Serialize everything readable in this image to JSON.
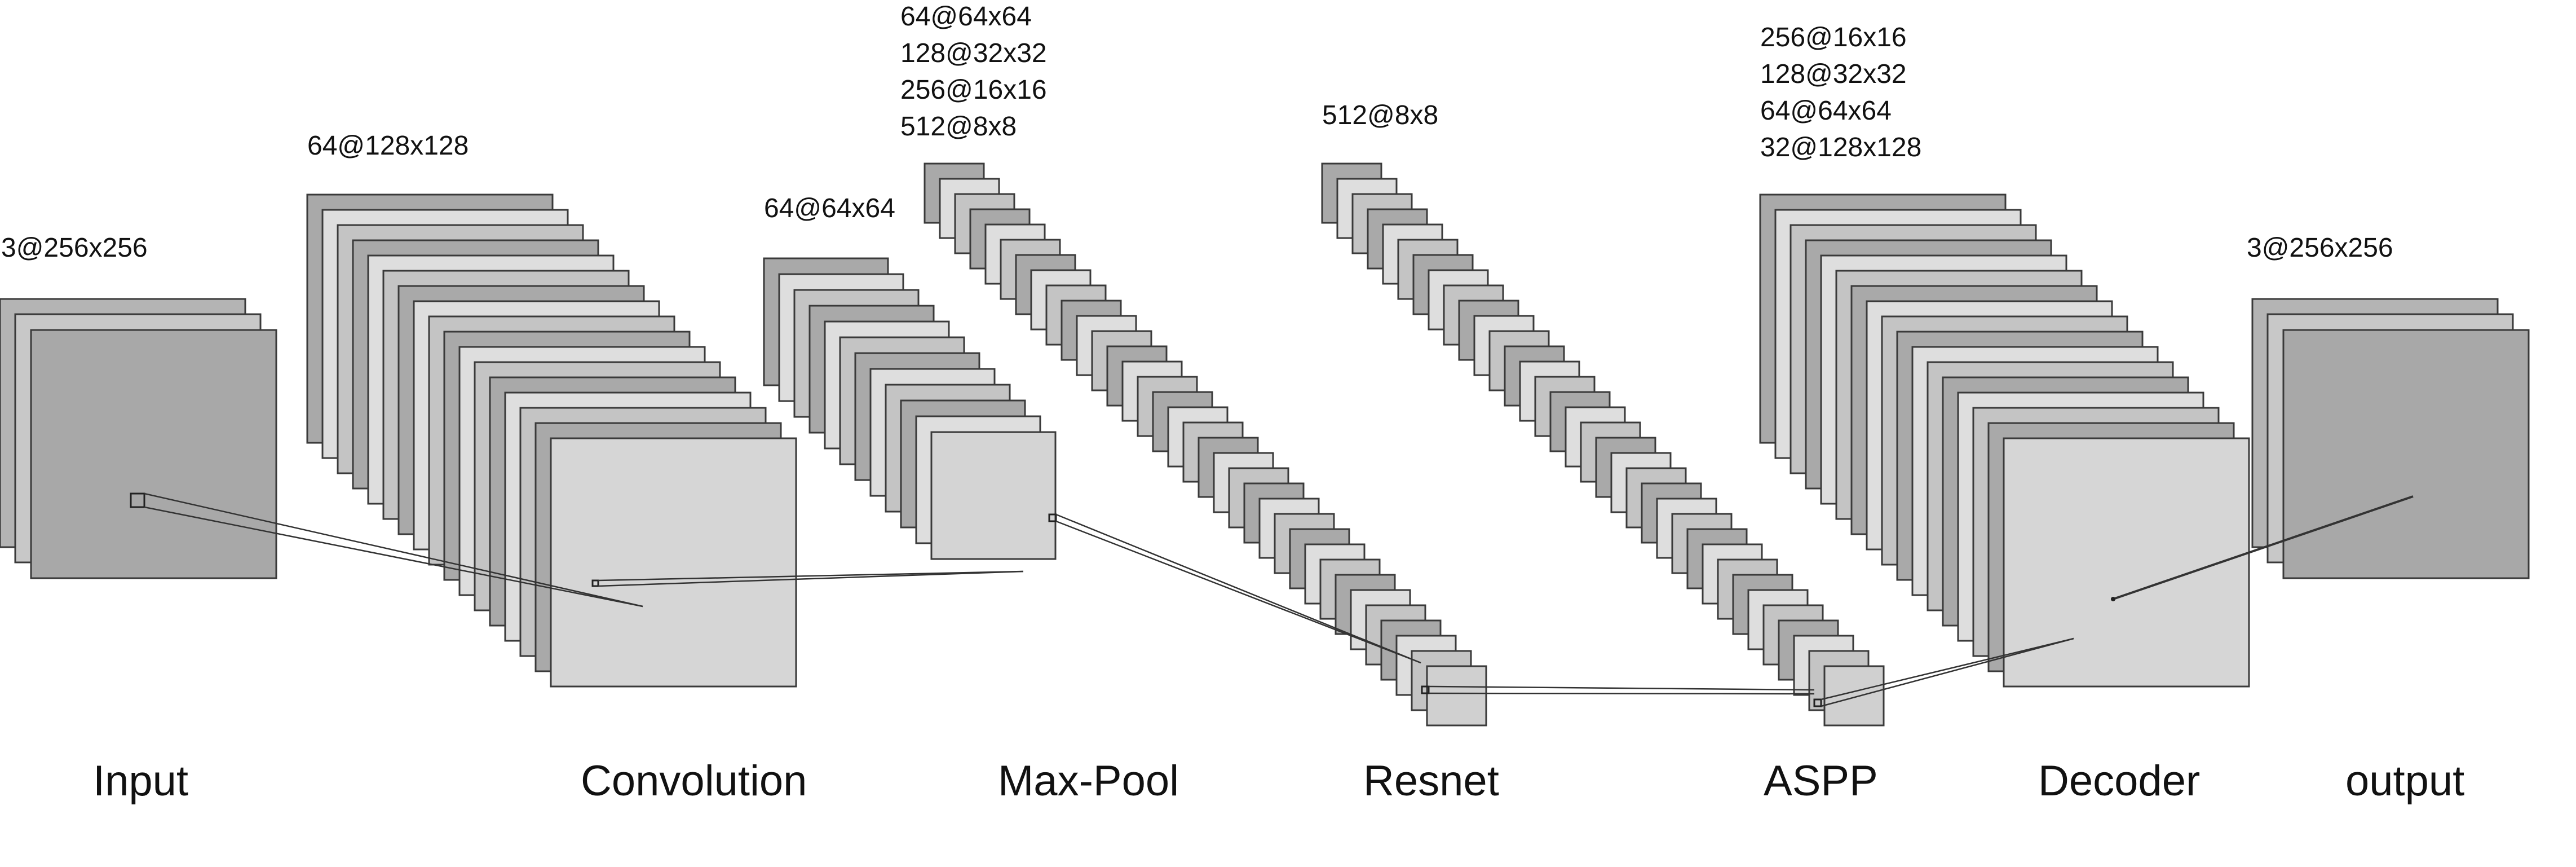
{
  "stages": [
    {
      "id": "input",
      "label": "Input",
      "dims": [
        "3@256x256"
      ]
    },
    {
      "id": "convolution",
      "label": "Convolution",
      "dims": [
        "64@128x128"
      ]
    },
    {
      "id": "maxpool",
      "label": "Max-Pool",
      "dims": [
        "64@64x64"
      ]
    },
    {
      "id": "resnet",
      "label": "Resnet",
      "dims": [
        "64@64x64",
        "128@32x32",
        "256@16x16",
        "512@8x8"
      ]
    },
    {
      "id": "resnet-out",
      "label": "",
      "dims": [
        "512@8x8"
      ]
    },
    {
      "id": "aspp",
      "label": "ASPP",
      "dims": []
    },
    {
      "id": "decoder",
      "label": "Decoder",
      "dims": [
        "256@16x16",
        "128@32x32",
        "64@64x64",
        "32@128x128"
      ]
    },
    {
      "id": "output",
      "label": "output",
      "dims": [
        "3@256x256"
      ]
    }
  ],
  "colors": {
    "layer_dark": "#a9a9a9",
    "layer_mid": "#c4c4c4",
    "layer_light": "#dedede",
    "stroke": "#3a3a3a"
  }
}
